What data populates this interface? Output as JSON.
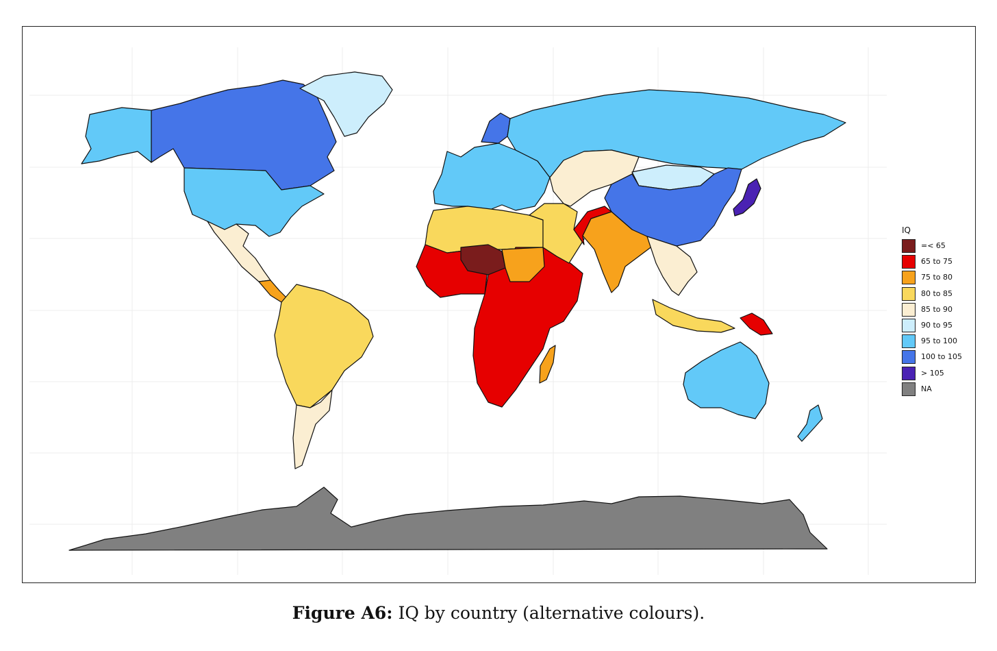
{
  "legend": {
    "title": "IQ",
    "items": [
      {
        "label": "=< 65",
        "color": "#7a1c1c"
      },
      {
        "label": "65 to 75",
        "color": "#e60000"
      },
      {
        "label": "75 to 80",
        "color": "#f7a21c"
      },
      {
        "label": "80 to 85",
        "color": "#f9d85c"
      },
      {
        "label": "85 to 90",
        "color": "#fbeed2"
      },
      {
        "label": "90 to 95",
        "color": "#cdeefc"
      },
      {
        "label": "95 to 100",
        "color": "#62c9f8"
      },
      {
        "label": "100 to 105",
        "color": "#4575e8"
      },
      {
        "label": "> 105",
        "color": "#4a22b3"
      },
      {
        "label": "NA",
        "color": "#808080"
      }
    ]
  },
  "caption": {
    "label": "Figure A6:",
    "text": "IQ by country (alternative colours)."
  },
  "regions": [
    {
      "name": "alaska",
      "color": "#62c9f8"
    },
    {
      "name": "canada",
      "color": "#4575e8"
    },
    {
      "name": "greenland",
      "color": "#cdeefc"
    },
    {
      "name": "usa",
      "color": "#62c9f8"
    },
    {
      "name": "mexico",
      "color": "#fbeed2"
    },
    {
      "name": "central-america",
      "color": "#f7a21c"
    },
    {
      "name": "south-america",
      "color": "#f9d85c"
    },
    {
      "name": "argentina",
      "color": "#fbeed2"
    },
    {
      "name": "europe",
      "color": "#62c9f8"
    },
    {
      "name": "scandinavia",
      "color": "#4575e8"
    },
    {
      "name": "russia",
      "color": "#62c9f8"
    },
    {
      "name": "north-africa",
      "color": "#f9d85c"
    },
    {
      "name": "west-africa",
      "color": "#e60000"
    },
    {
      "name": "niger",
      "color": "#7a1c1c"
    },
    {
      "name": "sub-saharan-africa",
      "color": "#e60000"
    },
    {
      "name": "sudan",
      "color": "#f7a21c"
    },
    {
      "name": "madagascar",
      "color": "#f7a21c"
    },
    {
      "name": "middle-east",
      "color": "#f9d85c"
    },
    {
      "name": "central-asia",
      "color": "#fbeed2"
    },
    {
      "name": "mongolia",
      "color": "#cdeefc"
    },
    {
      "name": "china",
      "color": "#4575e8"
    },
    {
      "name": "japan",
      "color": "#4a22b3"
    },
    {
      "name": "india",
      "color": "#f7a21c"
    },
    {
      "name": "pakistan",
      "color": "#e60000"
    },
    {
      "name": "southeast-asia",
      "color": "#fbeed2"
    },
    {
      "name": "indonesia",
      "color": "#f9d85c"
    },
    {
      "name": "papua-new-guinea",
      "color": "#e60000"
    },
    {
      "name": "australia",
      "color": "#62c9f8"
    },
    {
      "name": "new-zealand",
      "color": "#62c9f8"
    },
    {
      "name": "antarctica",
      "color": "#808080"
    }
  ]
}
